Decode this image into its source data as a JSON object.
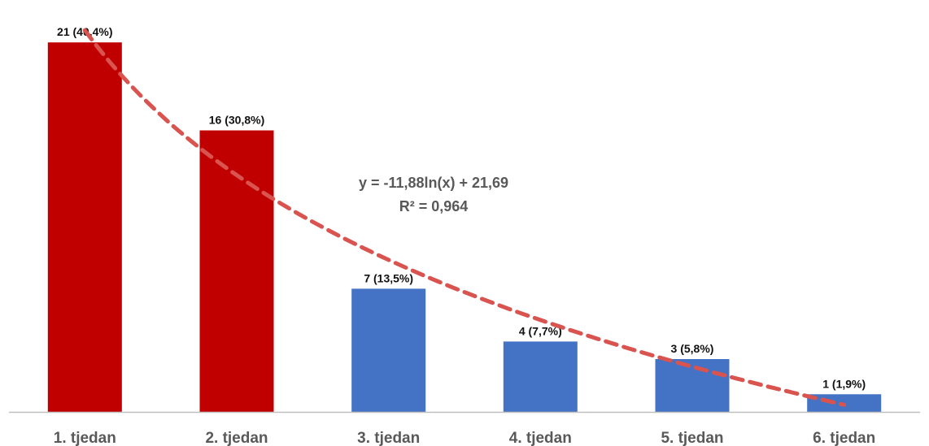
{
  "chart_data": {
    "type": "bar",
    "categories": [
      "1. tjedan",
      "2. tjedan",
      "3. tjedan",
      "4. tjedan",
      "5. tjedan",
      "6. tjedan"
    ],
    "values": [
      21,
      16,
      7,
      4,
      3,
      1
    ],
    "data_labels": [
      "21 (40,4%)",
      "16 (30,8%)",
      "7 (13,5%)",
      "4 (7,7%)",
      "3 (5,8%)",
      "1 (1,9%)"
    ],
    "bar_colors": [
      "#c00000",
      "#c00000",
      "#4472c4",
      "#4472c4",
      "#4472c4",
      "#4472c4"
    ],
    "trendline": {
      "type": "logarithmic",
      "slope": -11.88,
      "intercept": 21.69,
      "equation": "y = -11,88ln(x) + 21,69",
      "r_squared": "R² = 0,964",
      "color": "#d9534f",
      "style": "dashed"
    },
    "title": "",
    "xlabel": "",
    "ylabel": "",
    "ylim": [
      0,
      21.7
    ],
    "grid": false,
    "legend": "none",
    "baseline_color": "#bfbfbf"
  }
}
